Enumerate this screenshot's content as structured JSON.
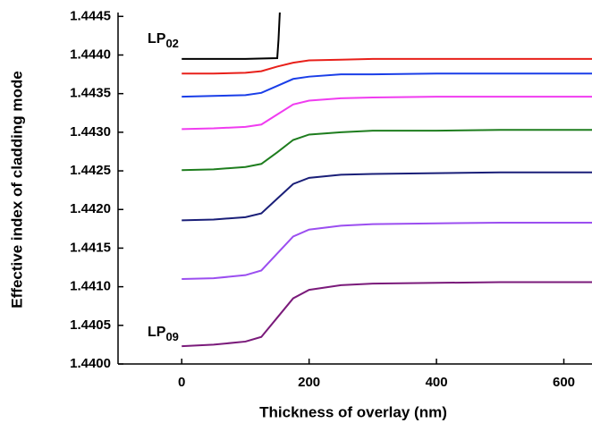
{
  "chart_data": {
    "type": "line",
    "x_label": "Thickness of overlay (nm)",
    "y_label": "Effective index of cladding mode",
    "xlim": [
      -100,
      640
    ],
    "ylim": [
      1.44,
      1.44455
    ],
    "xticks": [
      0,
      200,
      400,
      600
    ],
    "yticks": [
      {
        "value": 1.44,
        "label": "1.4400"
      },
      {
        "value": 1.4405,
        "label": "1.4405"
      },
      {
        "value": 1.441,
        "label": "1.4410"
      },
      {
        "value": 1.4415,
        "label": "1.4415"
      },
      {
        "value": 1.442,
        "label": "1.4420"
      },
      {
        "value": 1.4425,
        "label": "1.4425"
      },
      {
        "value": 1.443,
        "label": "1.4430"
      },
      {
        "value": 1.4435,
        "label": "1.4435"
      },
      {
        "value": 1.444,
        "label": "1.4440"
      },
      {
        "value": 1.4445,
        "label": "1.4445"
      }
    ],
    "annotations": [
      {
        "text": "LP",
        "subscript": "02"
      },
      {
        "text": "LP",
        "subscript": "09"
      }
    ],
    "x": [
      0,
      50,
      100,
      125,
      150,
      175,
      200,
      250,
      300,
      400,
      500,
      650
    ],
    "series": [
      {
        "color": "#000000",
        "x": [
          0,
          100,
          150,
          152,
          154
        ],
        "values": [
          1.44395,
          1.44395,
          1.44396,
          1.4442,
          1.44455
        ]
      },
      {
        "color": "#e8201a",
        "values": [
          1.44376,
          1.44376,
          1.44377,
          1.44379,
          1.44385,
          1.4439,
          1.44393,
          1.44394,
          1.44395,
          1.44395,
          1.44395,
          1.44395
        ]
      },
      {
        "color": "#1a3ee8",
        "values": [
          1.44346,
          1.44347,
          1.44348,
          1.44351,
          1.4436,
          1.44369,
          1.44372,
          1.44375,
          1.44375,
          1.44376,
          1.44376,
          1.44376
        ]
      },
      {
        "color": "#f03cf0",
        "values": [
          1.44304,
          1.44305,
          1.44307,
          1.4431,
          1.44323,
          1.44336,
          1.44341,
          1.44344,
          1.44345,
          1.44346,
          1.44346,
          1.44346
        ]
      },
      {
        "color": "#1e7d1e",
        "values": [
          1.44251,
          1.44252,
          1.44255,
          1.44259,
          1.44274,
          1.4429,
          1.44297,
          1.443,
          1.44302,
          1.44302,
          1.44303,
          1.44303
        ]
      },
      {
        "color": "#1a1f78",
        "values": [
          1.44186,
          1.44187,
          1.4419,
          1.44195,
          1.44214,
          1.44233,
          1.44241,
          1.44245,
          1.44246,
          1.44247,
          1.44248,
          1.44248
        ]
      },
      {
        "color": "#9b4ef0",
        "values": [
          1.4411,
          1.44111,
          1.44115,
          1.44121,
          1.44143,
          1.44165,
          1.44174,
          1.44179,
          1.44181,
          1.44182,
          1.44183,
          1.44183
        ]
      },
      {
        "color": "#7a1a7a",
        "values": [
          1.44023,
          1.44025,
          1.44029,
          1.44035,
          1.4406,
          1.44085,
          1.44096,
          1.44102,
          1.44104,
          1.44105,
          1.44106,
          1.44106
        ]
      }
    ]
  }
}
